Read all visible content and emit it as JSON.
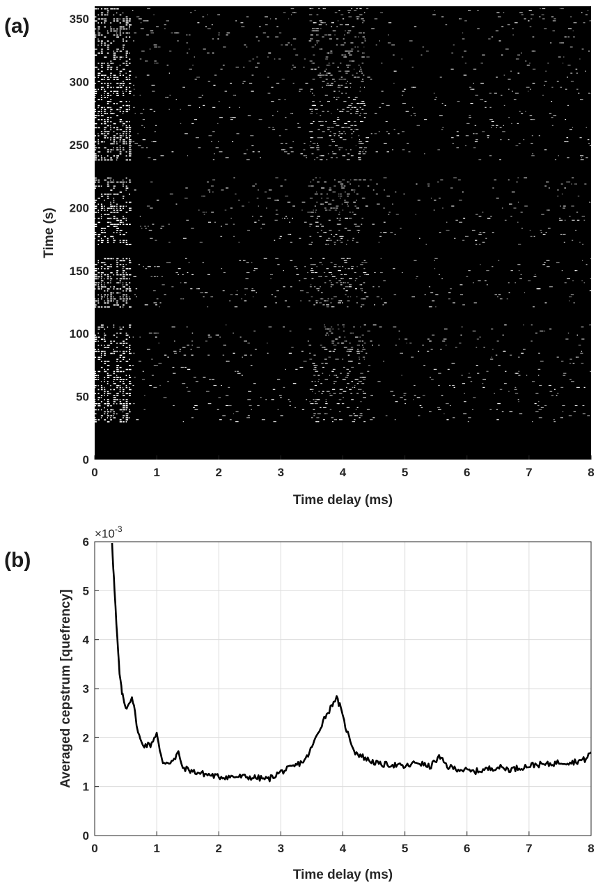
{
  "chart_data": [
    {
      "panel": "(a)",
      "type": "heatmap",
      "xlabel": "Time delay (ms)",
      "ylabel": "Time (s)",
      "xlim": [
        0,
        8
      ],
      "ylim": [
        0,
        360
      ],
      "xticks": [
        "0",
        "1",
        "2",
        "3",
        "4",
        "5",
        "6",
        "7",
        "8"
      ],
      "yticks": [
        "0",
        "50",
        "100",
        "150",
        "200",
        "250",
        "300",
        "350"
      ],
      "colormap": "gray",
      "colors": {
        "background": "#000000",
        "speckle": "#ffffff"
      },
      "silent_time_intervals_s": [
        [
          0,
          29
        ],
        [
          108,
          120
        ],
        [
          160,
          170
        ],
        [
          225,
          238
        ]
      ],
      "bright_delay_region_ms": [
        0,
        0.6
      ],
      "bright_feature_delay_ms": 3.9
    },
    {
      "panel": "(b)",
      "type": "line",
      "xlabel": "Time delay (ms)",
      "ylabel": "Averaged cepstrum [quefrency]",
      "xlim": [
        0,
        8
      ],
      "ylim": [
        0,
        6
      ],
      "y_exponent_label": "×10",
      "y_exponent_power": "-3",
      "y_scale_factor": 0.001,
      "grid": true,
      "xticks": [
        "0",
        "1",
        "2",
        "3",
        "4",
        "5",
        "6",
        "7",
        "8"
      ],
      "yticks": [
        "0",
        "1",
        "2",
        "3",
        "4",
        "5",
        "6"
      ],
      "series": [
        {
          "color": "#000000",
          "x": [
            0.28,
            0.3,
            0.32,
            0.35,
            0.38,
            0.4,
            0.43,
            0.45,
            0.5,
            0.55,
            0.6,
            0.65,
            0.7,
            0.75,
            0.8,
            0.9,
            1.0,
            1.05,
            1.1,
            1.2,
            1.3,
            1.35,
            1.4,
            1.5,
            1.6,
            1.8,
            2.0,
            2.2,
            2.4,
            2.6,
            2.8,
            3.0,
            3.2,
            3.4,
            3.5,
            3.6,
            3.7,
            3.8,
            3.85,
            3.9,
            3.95,
            4.0,
            4.1,
            4.2,
            4.4,
            4.6,
            4.8,
            5.0,
            5.2,
            5.4,
            5.55,
            5.7,
            5.9,
            6.1,
            6.3,
            6.5,
            6.7,
            6.9,
            7.1,
            7.3,
            7.5,
            7.7,
            7.9,
            8.0
          ],
          "y": [
            6.0,
            5.5,
            5.0,
            4.3,
            3.7,
            3.3,
            3.0,
            2.85,
            2.6,
            2.7,
            2.85,
            2.5,
            2.1,
            1.9,
            1.85,
            1.85,
            2.1,
            1.7,
            1.5,
            1.5,
            1.55,
            1.75,
            1.4,
            1.35,
            1.3,
            1.25,
            1.2,
            1.2,
            1.2,
            1.18,
            1.15,
            1.3,
            1.4,
            1.55,
            1.8,
            2.1,
            2.4,
            2.6,
            2.75,
            2.8,
            2.65,
            2.4,
            2.0,
            1.7,
            1.55,
            1.45,
            1.45,
            1.4,
            1.5,
            1.4,
            1.6,
            1.4,
            1.35,
            1.3,
            1.35,
            1.4,
            1.35,
            1.4,
            1.45,
            1.45,
            1.5,
            1.5,
            1.55,
            1.7
          ]
        }
      ]
    }
  ]
}
